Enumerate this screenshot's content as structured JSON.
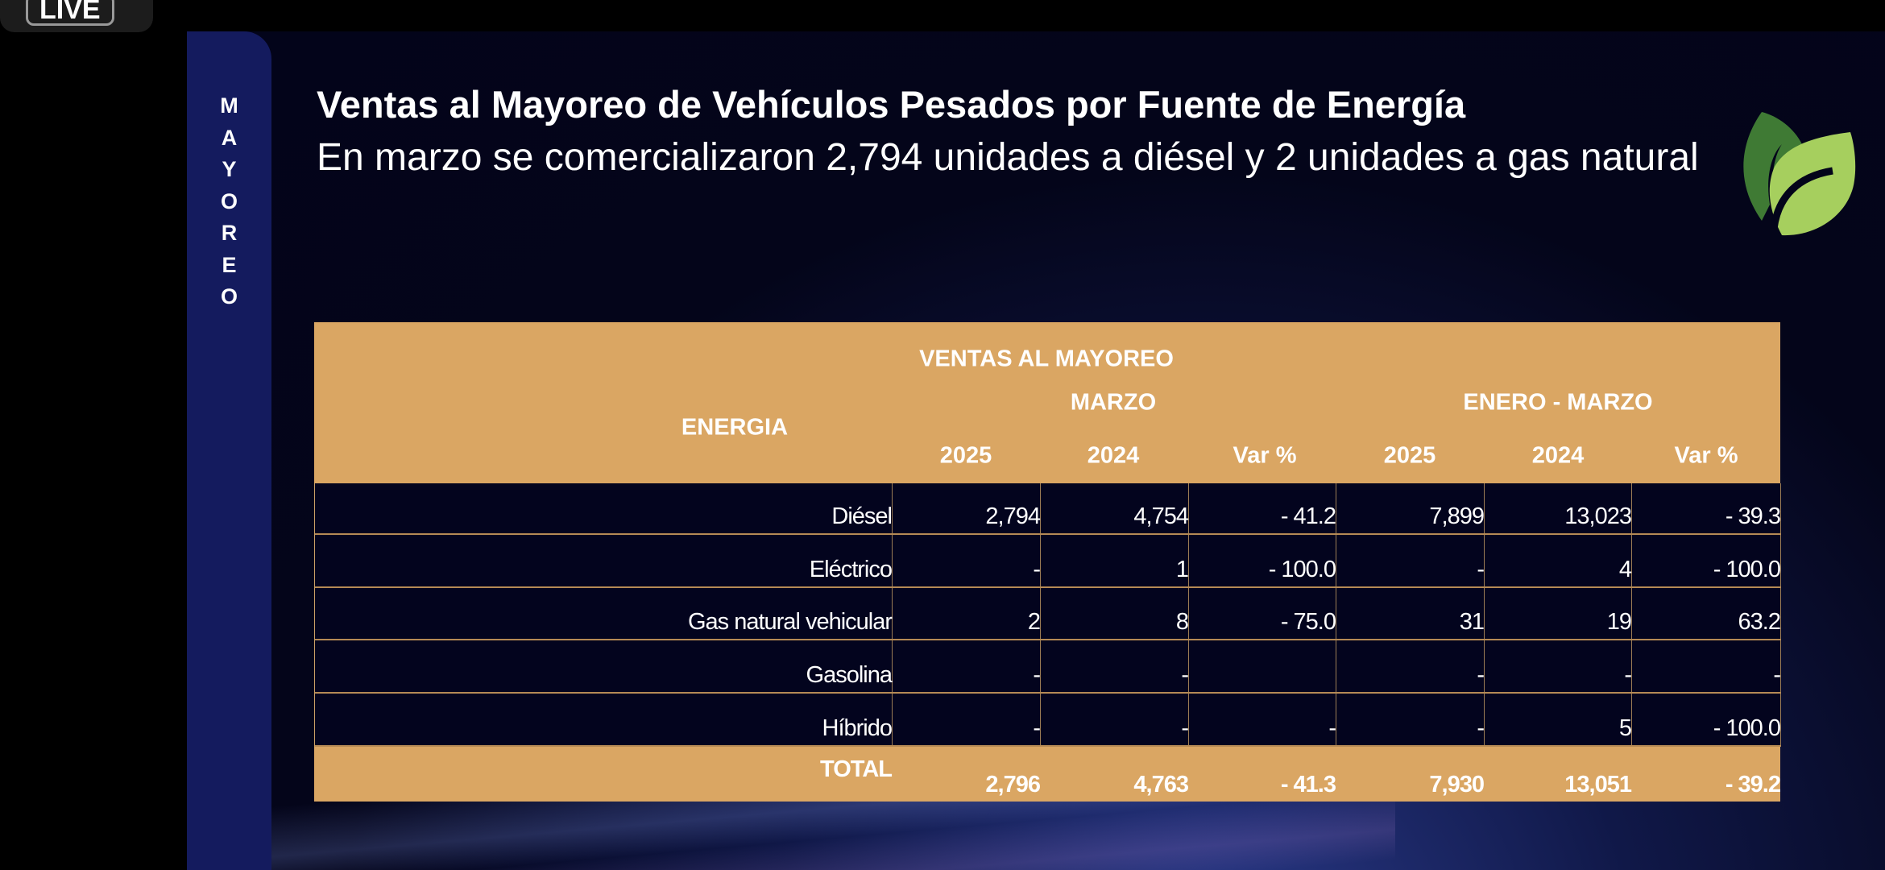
{
  "live_badge": "LIVE",
  "sidebar": {
    "letters": [
      "M",
      "A",
      "Y",
      "O",
      "R",
      "E",
      "O"
    ]
  },
  "header": {
    "title": "Ventas al Mayoreo de Vehículos Pesados por Fuente de Energía",
    "subtitle": "En marzo se comercializaron 2,794 unidades a diésel y 2 unidades a gas natural",
    "logo_icon": "leaf-icon",
    "leaf_colors": [
      "#3f7a34",
      "#a6cf5e"
    ]
  },
  "table": {
    "colors": {
      "header_bg": "#daa663",
      "body_bg": "#03041e"
    },
    "caption": "VENTAS AL MAYOREO",
    "energy_header": "ENERGIA",
    "group_marzo": "MARZO",
    "group_ytd": "ENERO - MARZO",
    "columns": [
      "2025",
      "2024",
      "Var %",
      "2025",
      "2024",
      "Var %"
    ],
    "rows": [
      {
        "label": "Diésel",
        "values": [
          "2,794",
          "4,754",
          "- 41.2",
          "7,899",
          "13,023",
          "- 39.3"
        ]
      },
      {
        "label": "Eléctrico",
        "values": [
          "-",
          "1",
          "- 100.0",
          "-",
          "4",
          "- 100.0"
        ]
      },
      {
        "label": "Gas natural vehicular",
        "values": [
          "2",
          "8",
          "- 75.0",
          "31",
          "19",
          "63.2"
        ]
      },
      {
        "label": "Gasolina",
        "values": [
          "-",
          "-",
          "",
          "-",
          "-",
          "-"
        ]
      },
      {
        "label": "Híbrido",
        "values": [
          "-",
          "-",
          "-",
          "-",
          "5",
          "- 100.0"
        ]
      }
    ],
    "total": {
      "label": "TOTAL",
      "values": [
        "2,796",
        "4,763",
        "- 41.3",
        "7,930",
        "13,051",
        "- 39.2"
      ]
    }
  }
}
